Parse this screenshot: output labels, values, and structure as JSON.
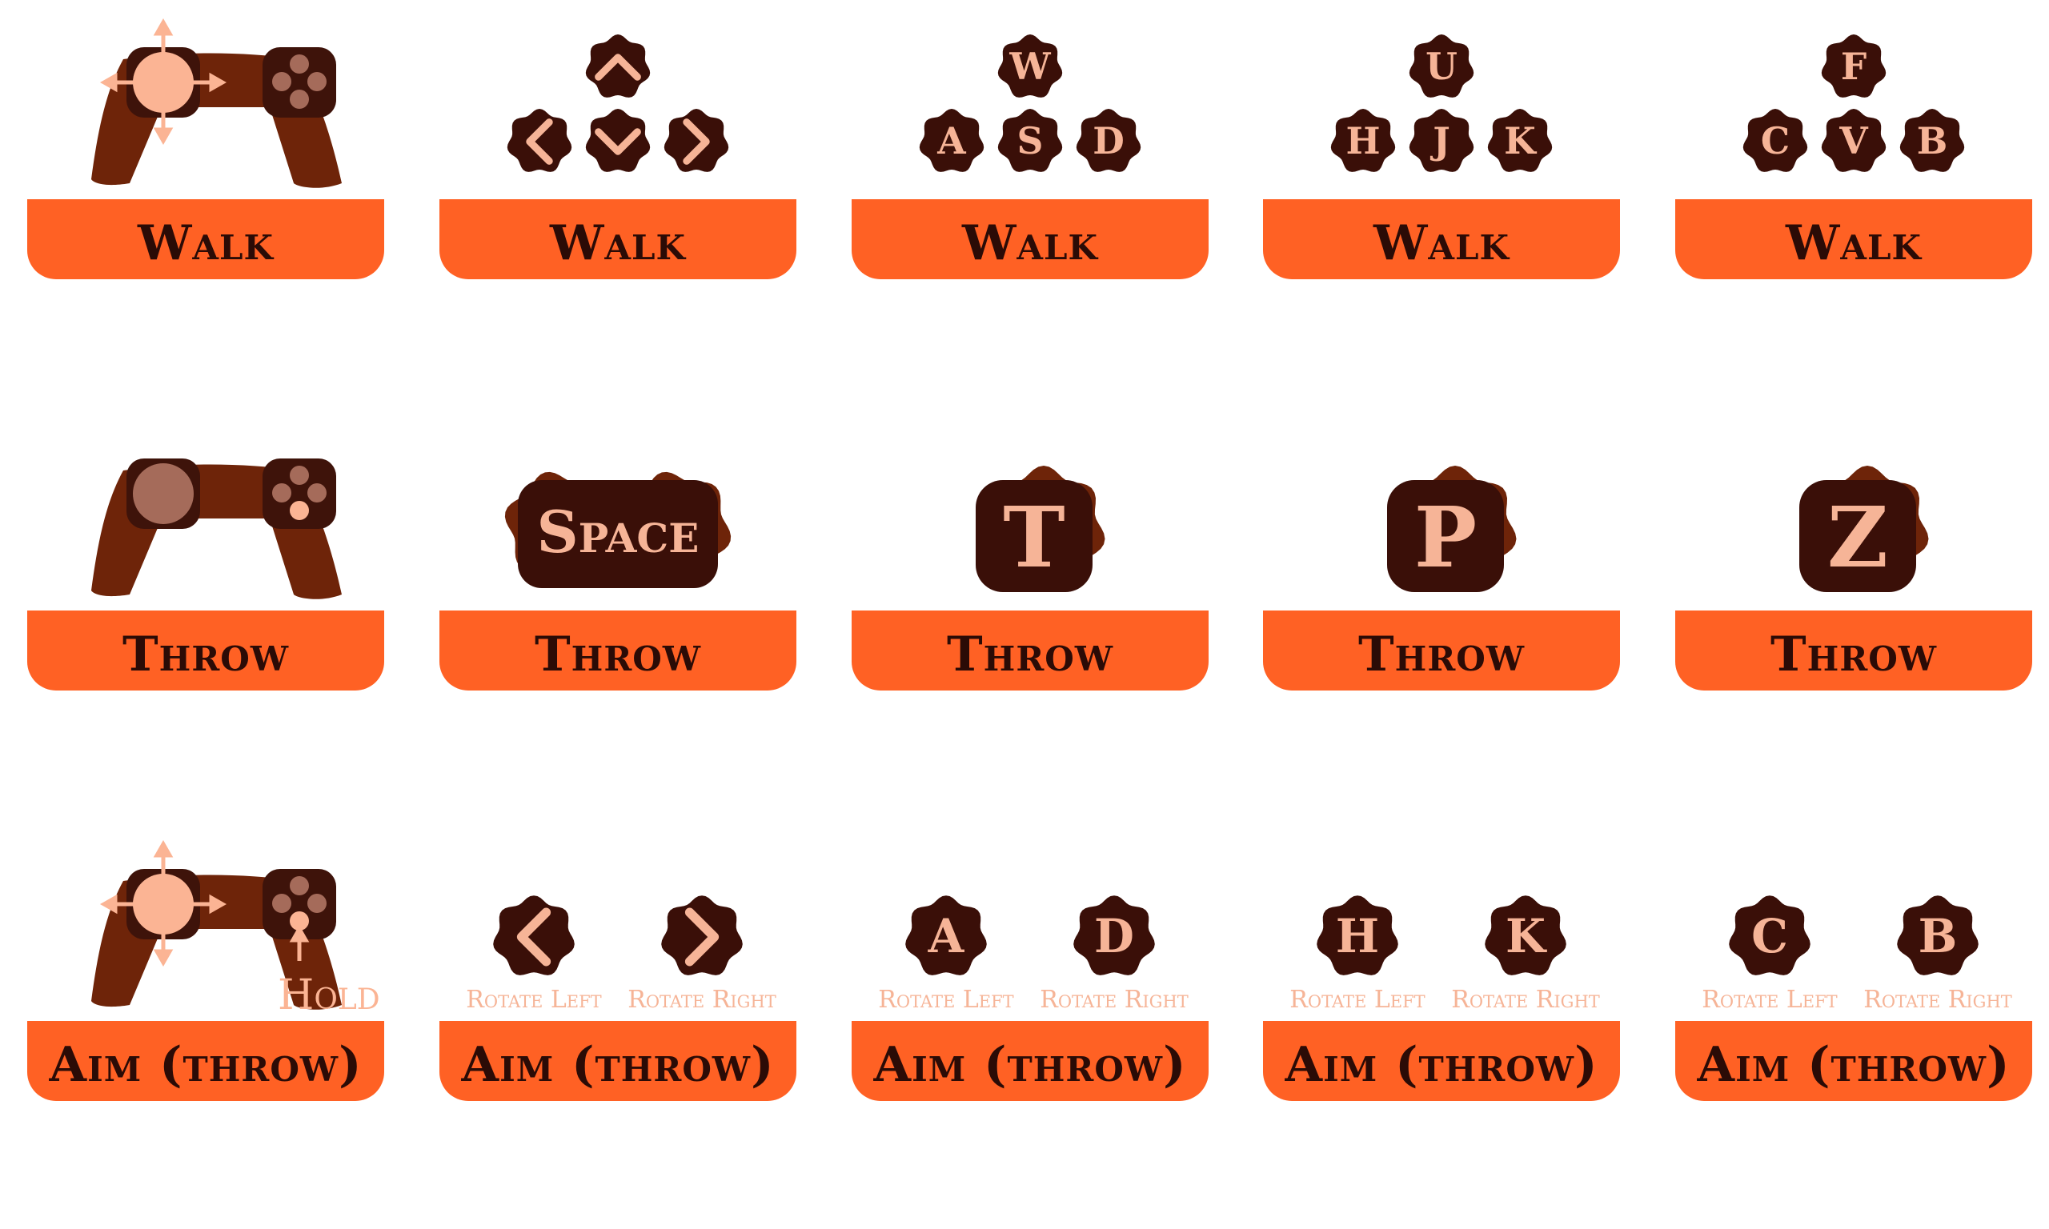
{
  "colors": {
    "banner": "#ff6124",
    "banner_text": "#2b0b06",
    "key_cap": "#3a0f08",
    "key_glyph": "#f6b497",
    "gamepad_body": "#6e2409",
    "gamepad_grip": "#3e130a",
    "highlight": "#fbb494",
    "dim_button": "#a56b5a"
  },
  "rows": [
    {
      "action": "Walk",
      "cells": [
        {
          "kind": "gamepad",
          "mode": "stick-arrows",
          "icon": "gamepad-left-stick-icon"
        },
        {
          "kind": "dpad",
          "keys": [
            "^",
            "<",
            "v",
            ">"
          ],
          "icon": "arrow-keys-icon"
        },
        {
          "kind": "dpad",
          "keys": [
            "W",
            "A",
            "S",
            "D"
          ]
        },
        {
          "kind": "dpad",
          "keys": [
            "U",
            "H",
            "J",
            "K"
          ]
        },
        {
          "kind": "dpad",
          "keys": [
            "F",
            "C",
            "V",
            "B"
          ]
        }
      ]
    },
    {
      "action": "Throw",
      "cells": [
        {
          "kind": "gamepad",
          "mode": "press-button",
          "icon": "gamepad-button-icon"
        },
        {
          "kind": "bigkey",
          "key": "Space"
        },
        {
          "kind": "bigkey",
          "key": "T"
        },
        {
          "kind": "bigkey",
          "key": "P"
        },
        {
          "kind": "bigkey",
          "key": "Z"
        }
      ]
    },
    {
      "action": "Aim (throw)",
      "cells": [
        {
          "kind": "gamepad",
          "mode": "hold",
          "hold_label": "Hold",
          "icon": "gamepad-hold-icon"
        },
        {
          "kind": "pair",
          "left": "<",
          "right": ">",
          "left_label": "Rotate Left",
          "right_label": "Rotate Right"
        },
        {
          "kind": "pair",
          "left": "A",
          "right": "D",
          "left_label": "Rotate Left",
          "right_label": "Rotate Right"
        },
        {
          "kind": "pair",
          "left": "H",
          "right": "K",
          "left_label": "Rotate Left",
          "right_label": "Rotate Right"
        },
        {
          "kind": "pair",
          "left": "C",
          "right": "B",
          "left_label": "Rotate Left",
          "right_label": "Rotate Right"
        }
      ]
    }
  ]
}
